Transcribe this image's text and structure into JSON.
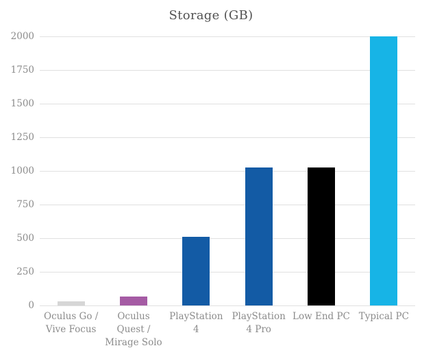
{
  "chart_data": {
    "type": "bar",
    "title": "Storage (GB)",
    "categories": [
      "Oculus Go /\nVive Focus",
      "Oculus\nQuest /\nMirage Solo",
      "PlayStation\n4",
      "PlayStation\n4 Pro",
      "Low End PC",
      "Typical PC"
    ],
    "values": [
      32,
      64,
      512,
      1024,
      1024,
      2000
    ],
    "bar_colors": [
      "#d6d6d6",
      "#a55ba4",
      "#135ba5",
      "#135ba5",
      "#000000",
      "#17b4e6"
    ],
    "xlabel": "",
    "ylabel": "",
    "ylim": [
      0,
      2000
    ],
    "yticks": [
      0,
      250,
      500,
      750,
      1000,
      1250,
      1500,
      1750,
      2000
    ],
    "grid": true,
    "legend": false
  },
  "style": {
    "gridline_color": "#e0e0e0",
    "axis_label_color": "#8b8b8b",
    "title_color": "#525252",
    "background_color": "#ffffff"
  }
}
